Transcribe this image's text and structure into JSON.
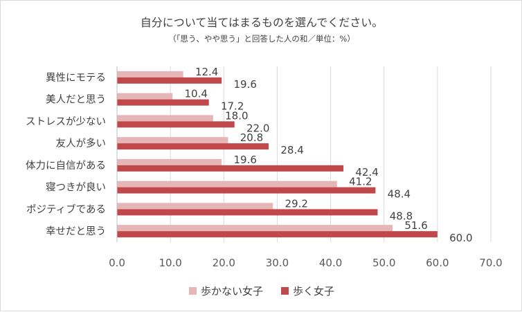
{
  "chart_data": {
    "type": "bar",
    "orientation": "horizontal",
    "title": "自分について当てはまるものを選んでください。",
    "subtitle": "（「思う、やや思う」と回答した人の和／単位：%）",
    "categories": [
      "異性にモテる",
      "美人だと思う",
      "ストレスが少ない",
      "友人が多い",
      "体力に自信がある",
      "寝つきが良い",
      "ポジティブである",
      "幸せだと思う"
    ],
    "series": [
      {
        "name": "歩かない女子",
        "color": "#e6b5b5",
        "values": [
          12.4,
          10.4,
          18.0,
          20.8,
          19.6,
          41.2,
          29.2,
          51.6
        ]
      },
      {
        "name": "歩く女子",
        "color": "#c0474a",
        "values": [
          19.6,
          17.2,
          22.0,
          28.4,
          42.4,
          48.4,
          48.8,
          60.0
        ]
      }
    ],
    "xlim": [
      0,
      70
    ],
    "xticks": [
      "0.0",
      "10.0",
      "20.0",
      "30.0",
      "40.0",
      "50.0",
      "60.0",
      "70.0"
    ],
    "grid": true,
    "legend_position": "bottom"
  }
}
